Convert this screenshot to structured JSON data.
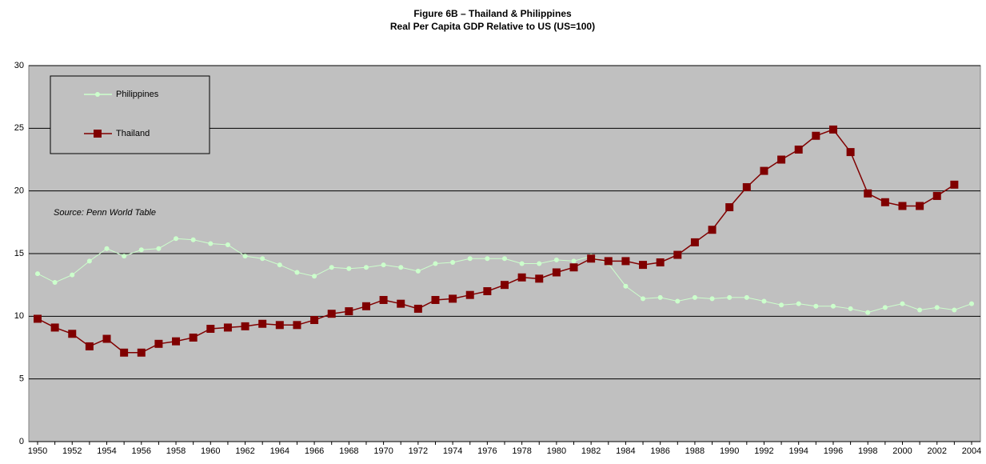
{
  "chart_data": {
    "type": "line",
    "title": "Figure 6B – Thailand & Philippines",
    "subtitle": "Real Per Capita GDP Relative to US (US=100)",
    "annotation": "Source: Penn World Table",
    "categories": [
      "1950",
      null,
      "1952",
      null,
      "1954",
      null,
      "1956",
      null,
      "1958",
      null,
      "1960",
      null,
      "1962",
      null,
      "1964",
      null,
      "1966",
      null,
      "1968",
      null,
      "1970",
      null,
      "1972",
      null,
      "1974",
      null,
      "1976",
      null,
      "1978",
      null,
      "1980",
      null,
      "1982",
      null,
      "1984",
      null,
      "1986",
      null,
      "1988",
      null,
      "1990",
      null,
      "1992",
      null,
      "1994",
      null,
      "1996",
      null,
      "1998",
      null,
      "2000",
      null,
      "2002",
      null,
      "2004"
    ],
    "series": [
      {
        "name": "Philippines",
        "color": "#ccffcc",
        "marker": "circle",
        "values": [
          13.4,
          12.7,
          13.3,
          14.4,
          15.4,
          14.8,
          15.3,
          15.4,
          16.2,
          16.1,
          15.8,
          15.7,
          14.8,
          14.6,
          14.1,
          13.5,
          13.2,
          13.9,
          13.8,
          13.9,
          14.1,
          13.9,
          13.6,
          14.2,
          14.3,
          14.6,
          14.6,
          14.6,
          14.2,
          14.2,
          14.5,
          14.4,
          14.8,
          14.2,
          12.4,
          11.4,
          11.5,
          11.2,
          11.5,
          11.4,
          11.5,
          11.5,
          11.2,
          10.9,
          11.0,
          10.8,
          10.8,
          10.6,
          10.3,
          10.7,
          11.0,
          10.5,
          10.7,
          10.5,
          11.0
        ]
      },
      {
        "name": "Thailand",
        "color": "#800000",
        "marker": "square",
        "values": [
          9.8,
          9.1,
          8.6,
          7.6,
          8.2,
          7.1,
          7.1,
          7.8,
          8.0,
          8.3,
          9.0,
          9.1,
          9.2,
          9.4,
          9.3,
          9.3,
          9.7,
          10.2,
          10.4,
          10.8,
          11.3,
          11.0,
          10.6,
          11.3,
          11.4,
          11.7,
          12.0,
          12.5,
          13.1,
          13.0,
          13.5,
          13.9,
          14.6,
          14.4,
          14.4,
          14.1,
          14.3,
          14.9,
          15.9,
          16.9,
          18.7,
          20.3,
          21.6,
          22.5,
          23.3,
          24.4,
          24.9,
          23.1,
          19.8,
          19.1,
          18.8,
          18.8,
          19.6,
          20.5,
          null
        ]
      }
    ],
    "ylim": [
      0,
      30
    ],
    "yticks": [
      0,
      5,
      10,
      15,
      20,
      25,
      30
    ],
    "grid": true,
    "legend": "top-left"
  }
}
